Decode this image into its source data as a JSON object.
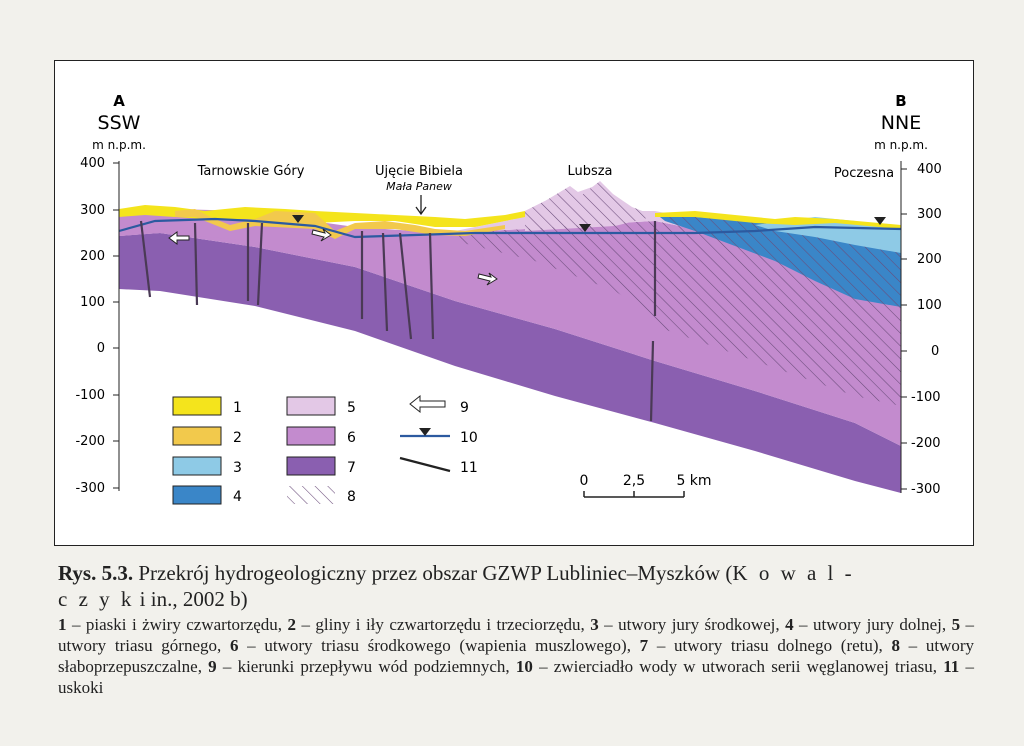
{
  "diagram": {
    "left_end": {
      "letter": "A",
      "direction": "SSW",
      "unit": "m n.p.m."
    },
    "right_end": {
      "letter": "B",
      "direction": "NNE",
      "unit": "m n.p.m."
    },
    "y_ticks_left": [
      "400",
      "300",
      "200",
      "100",
      "0",
      "-100",
      "-200",
      "-300"
    ],
    "y_ticks_right": [
      "400",
      "300",
      "200",
      "100",
      "0",
      "-100",
      "-200",
      "-300"
    ],
    "places": [
      {
        "name": "Tarnowskie Góry"
      },
      {
        "name": "Ujęcie Bibiela"
      },
      {
        "name": "Mała Panew"
      },
      {
        "name": "Lubsza"
      },
      {
        "name": "Poczesna"
      }
    ],
    "legend": [
      {
        "num": "1",
        "color": "#f4e41c"
      },
      {
        "num": "2",
        "color": "#f2c94c"
      },
      {
        "num": "3",
        "color": "#8ecae6"
      },
      {
        "num": "4",
        "color": "#3a86c8"
      },
      {
        "num": "5",
        "color": "#e3c8e6"
      },
      {
        "num": "6",
        "color": "#c38bce"
      },
      {
        "num": "7",
        "color": "#8a5fb0"
      },
      {
        "num": "8",
        "color": "hatch"
      },
      {
        "num": "9",
        "symbol": "flow-arrow"
      },
      {
        "num": "10",
        "symbol": "water-table"
      },
      {
        "num": "11",
        "symbol": "fault"
      }
    ],
    "scale": {
      "labels": [
        "0",
        "2,5",
        "5 km"
      ]
    },
    "colors": {
      "yellow": "#f4e41c",
      "ochre": "#f2c94c",
      "light_blue": "#8ecae6",
      "blue": "#3a86c8",
      "light_purple": "#e3c8e6",
      "purple": "#c38bce",
      "dark_purple": "#8a5fb0",
      "water_table": "#2c5aa0"
    }
  },
  "caption": {
    "title_prefix": "Rys. 5.3.",
    "title_text": "Przekrój hydrogeologiczny przez obszar GZWP Lubliniec–Myszków (",
    "title_author_a": "K o w a l -",
    "title_author_b": "c z y k",
    "title_suffix": "i in., 2002 b)",
    "legend_items": [
      {
        "num": "1",
        "text": "piaski i żwiry czwartorzędu,"
      },
      {
        "num": "2",
        "text": "gliny i iły czwartorzędu i trzeciorzędu,"
      },
      {
        "num": "3",
        "text": "utwory jury środkowej,"
      },
      {
        "num": "4",
        "text": "utwory jury dolnej,"
      },
      {
        "num": "5",
        "text": "utwory triasu górnego,"
      },
      {
        "num": "6",
        "text": "utwory triasu środkowego (wapienia muszlowego),"
      },
      {
        "num": "7",
        "text": "utwory triasu dolnego (retu),"
      },
      {
        "num": "8",
        "text": "utwory słaboprzepuszczalne,"
      },
      {
        "num": "9",
        "text": "kierunki przepływu wód podziemnych,"
      },
      {
        "num": "10",
        "text": "zwierciadło wody w utworach serii węglanowej triasu,"
      },
      {
        "num": "11",
        "text": "uskoki"
      }
    ]
  }
}
